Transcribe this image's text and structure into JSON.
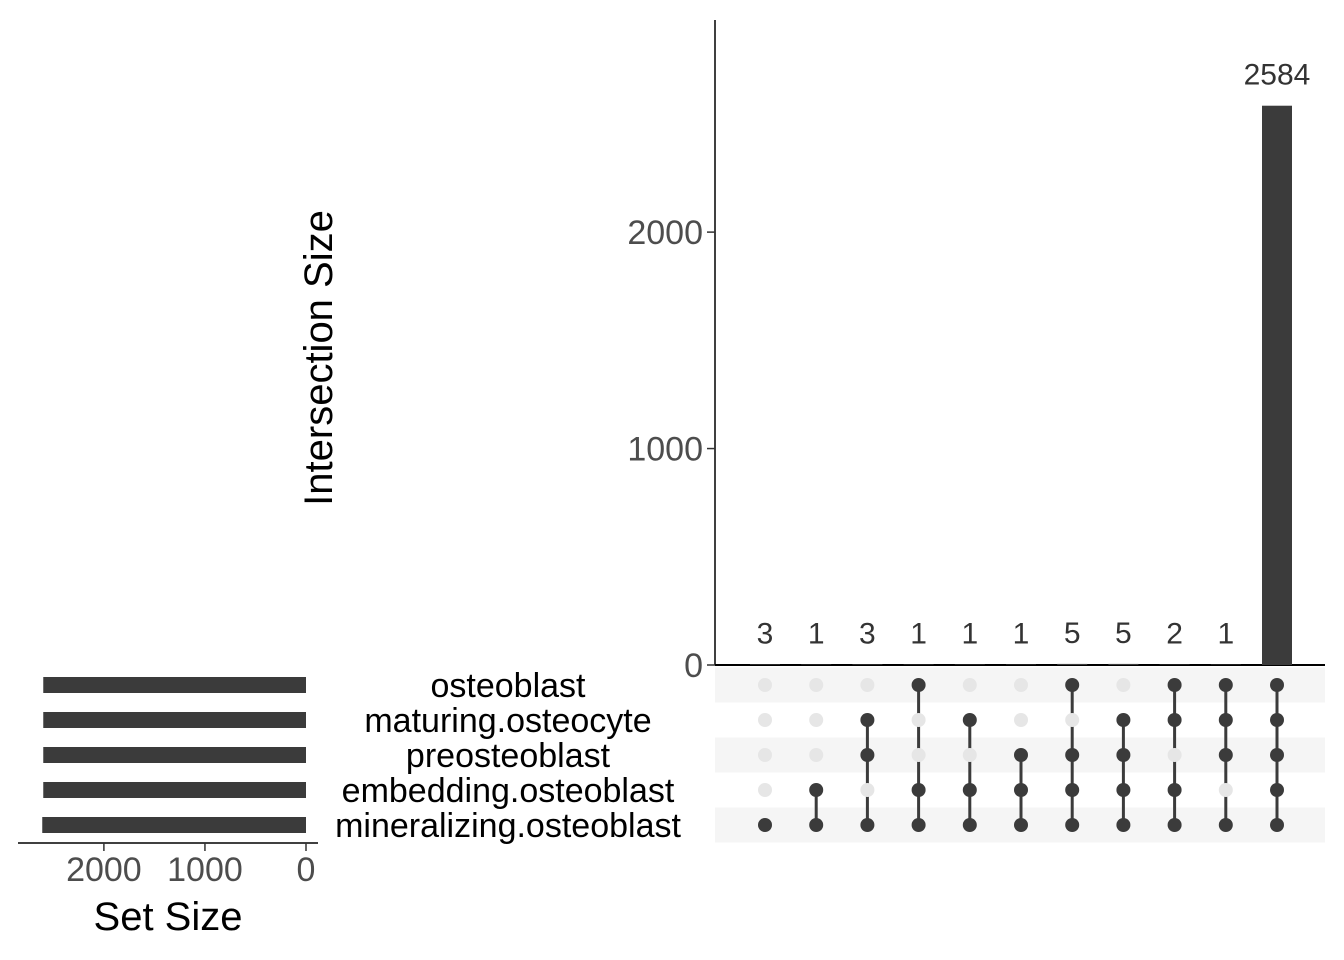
{
  "chart_data": {
    "type": "upset",
    "intersection_axis": {
      "label": "Intersection Size",
      "ticks": [
        0,
        1000,
        2000
      ],
      "ylim": [
        0,
        2980
      ]
    },
    "set_size_axis": {
      "label": "Set Size",
      "ticks": [
        2000,
        1000,
        0
      ],
      "xlim": [
        2850,
        0
      ]
    },
    "sets": [
      {
        "name": "osteoblast",
        "size": 2600
      },
      {
        "name": "maturing.osteocyte",
        "size": 2600
      },
      {
        "name": "preosteoblast",
        "size": 2600
      },
      {
        "name": "embedding.osteoblast",
        "size": 2600
      },
      {
        "name": "mineralizing.osteoblast",
        "size": 2610
      }
    ],
    "intersections": [
      {
        "value": 3,
        "label": "3",
        "members": [
          "mineralizing.osteoblast"
        ]
      },
      {
        "value": 1,
        "label": "1",
        "members": [
          "embedding.osteoblast",
          "mineralizing.osteoblast"
        ]
      },
      {
        "value": 3,
        "label": "3",
        "members": [
          "maturing.osteocyte",
          "preosteoblast",
          "mineralizing.osteoblast"
        ]
      },
      {
        "value": 1,
        "label": "1",
        "members": [
          "osteoblast",
          "embedding.osteoblast",
          "mineralizing.osteoblast"
        ]
      },
      {
        "value": 1,
        "label": "1",
        "members": [
          "maturing.osteocyte",
          "embedding.osteoblast",
          "mineralizing.osteoblast"
        ]
      },
      {
        "value": 1,
        "label": "1",
        "members": [
          "preosteoblast",
          "embedding.osteoblast",
          "mineralizing.osteoblast"
        ]
      },
      {
        "value": 5,
        "label": "5",
        "members": [
          "osteoblast",
          "preosteoblast",
          "embedding.osteoblast",
          "mineralizing.osteoblast"
        ]
      },
      {
        "value": 5,
        "label": "5",
        "members": [
          "maturing.osteocyte",
          "preosteoblast",
          "embedding.osteoblast",
          "mineralizing.osteoblast"
        ]
      },
      {
        "value": 2,
        "label": "2",
        "members": [
          "osteoblast",
          "maturing.osteocyte",
          "embedding.osteoblast",
          "mineralizing.osteoblast"
        ]
      },
      {
        "value": 1,
        "label": "1",
        "members": [
          "osteoblast",
          "maturing.osteocyte",
          "preosteoblast",
          "mineralizing.osteoblast"
        ]
      },
      {
        "value": 2584,
        "label": "2584",
        "members": [
          "osteoblast",
          "maturing.osteocyte",
          "preosteoblast",
          "embedding.osteoblast",
          "mineralizing.osteoblast"
        ]
      }
    ],
    "colors": {
      "bar": "#3b3b3b",
      "dot_active": "#3b3b3b",
      "dot_inactive": "#e6e6e6",
      "stripe": "#f5f5f5",
      "axis": "#000000",
      "tick_text": "#4d4d4d"
    },
    "grid": false
  }
}
